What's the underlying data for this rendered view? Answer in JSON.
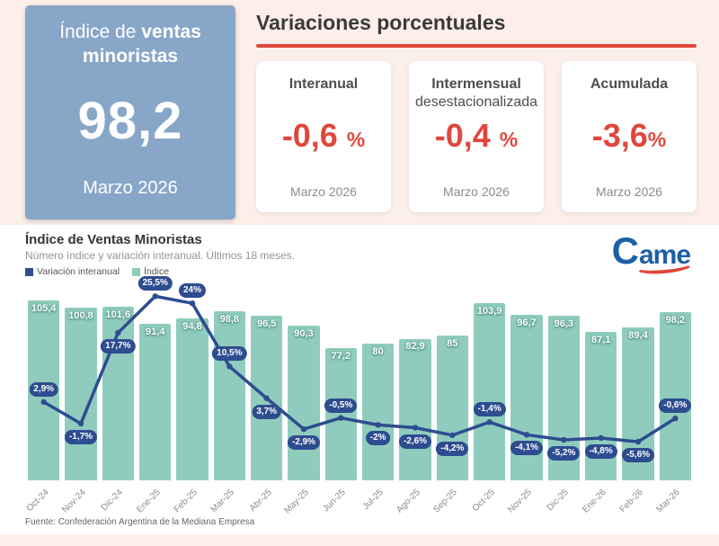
{
  "header": {
    "index_box": {
      "title_regular": "Índice de ",
      "title_bold": "ventas minoristas",
      "value": "98,2",
      "period": "Marzo 2026"
    },
    "section_title": "Variaciones porcentuales",
    "cards": [
      {
        "title": "Interanual",
        "subtitle": "",
        "value": "-0,6",
        "unit": "%",
        "period": "Marzo 2026"
      },
      {
        "title": "Intermensual",
        "subtitle": "desestacionalizada",
        "value": "-0,4",
        "unit": "%",
        "period": "Marzo 2026"
      },
      {
        "title": "Acumulada",
        "subtitle": "",
        "value": "-3,6",
        "unit": "%",
        "period": "Marzo 2026"
      }
    ]
  },
  "chart": {
    "title": "Índice de Ventas Minoristas",
    "subtitle": "Número índice y variación interanual. Últimos 18 meses.",
    "legend": [
      {
        "label": "Variación interanual",
        "color": "#2e4c90"
      },
      {
        "label": "Índice",
        "color": "#8fccbd"
      }
    ],
    "logo_c": "C",
    "logo_rest": "ame",
    "source": "Fuente: Confederación Argentina de la Mediana Empresa"
  },
  "chart_data": {
    "type": "bar+line",
    "categories": [
      "Oct-24",
      "Nov-24",
      "Dic-24",
      "Ene-25",
      "Feb-25",
      "Mar-25",
      "Abr-25",
      "May-25",
      "Jun-25",
      "Jul-25",
      "Ago-25",
      "Sep-25",
      "Oct-25",
      "Nov-25",
      "Dic-25",
      "Ene-26",
      "Feb-26",
      "Mar-26"
    ],
    "series": [
      {
        "name": "Índice",
        "type": "bar",
        "values": [
          105.4,
          100.8,
          101.6,
          91.4,
          94.8,
          98.8,
          96.5,
          90.3,
          77.2,
          80,
          82.9,
          85,
          103.9,
          96.7,
          96.3,
          87.1,
          89.4,
          98.2
        ],
        "labels": [
          "105,4",
          "100,8",
          "101,6",
          "91,4",
          "94,8",
          "98,8",
          "96,5",
          "90,3",
          "77,2",
          "80",
          "82,9",
          "85",
          "103,9",
          "96,7",
          "96,3",
          "87,1",
          "89,4",
          "98,2"
        ],
        "color": "#8fccbd",
        "ylim": [
          0,
          110
        ]
      },
      {
        "name": "Variación interanual",
        "type": "line",
        "values": [
          2.9,
          -1.7,
          17.7,
          25.5,
          24,
          10.5,
          3.7,
          -2.9,
          -0.5,
          -2,
          -2.6,
          -4.2,
          -1.4,
          -4.1,
          -5.2,
          -4.8,
          -5.6,
          -0.6
        ],
        "labels": [
          "2,9%",
          "-1,7%",
          "17,7%",
          "25,5%",
          "24%",
          "10,5%",
          "3,7%",
          "-2,9%",
          "-0,5%",
          "-2%",
          "-2,6%",
          "-4,2%",
          "-1,4%",
          "-4,1%",
          "-5,2%",
          "-4,8%",
          "-5,6%",
          "-0,6%"
        ],
        "label_side": [
          "above",
          "below",
          "below",
          "above",
          "above",
          "above",
          "below",
          "below",
          "above",
          "below",
          "below",
          "below",
          "above",
          "below",
          "below",
          "below",
          "below",
          "above"
        ],
        "color": "#2e4c90",
        "ylim": [
          -8,
          28
        ]
      }
    ],
    "grid": false,
    "legend_position": "top-left"
  }
}
